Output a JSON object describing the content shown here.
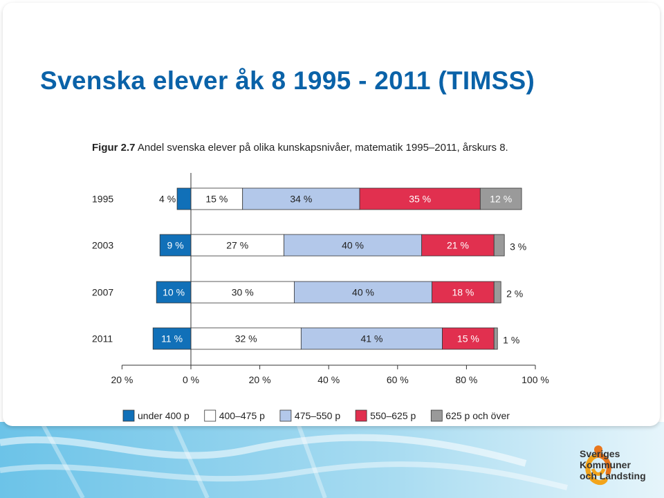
{
  "slide": {
    "title": "Svenska elever åk 8 1995 - 2011 (TIMSS)"
  },
  "figure": {
    "label": "Figur 2.7",
    "caption": "Andel svenska elever på olika kunskapsnivåer, matematik 1995–2011, årskurs 8."
  },
  "logo": {
    "lines": [
      "Sveriges",
      "Kommuner",
      "och Landsting"
    ]
  },
  "colors": {
    "title": "#0a62a8",
    "under400": "#1170b8",
    "l400_475": "#ffffff",
    "l475_550": "#b3c8ea",
    "l550_625": "#e1304f",
    "l625": "#9a9a9a"
  },
  "chart_data": {
    "type": "bar",
    "orientation": "horizontal-stacked-diverging",
    "categories": [
      "1995",
      "2003",
      "2007",
      "2011"
    ],
    "series": [
      {
        "name": "under 400 p",
        "values": [
          4,
          9,
          10,
          11
        ],
        "labels": [
          "4 %",
          "9 %",
          "10 %",
          "11 %"
        ],
        "color": "#1170b8",
        "side": "negative"
      },
      {
        "name": "400–475 p",
        "values": [
          15,
          27,
          30,
          32
        ],
        "labels": [
          "15 %",
          "27 %",
          "30 %",
          "32 %"
        ],
        "color": "#ffffff",
        "side": "positive"
      },
      {
        "name": "475–550 p",
        "values": [
          34,
          40,
          40,
          41
        ],
        "labels": [
          "34 %",
          "40 %",
          "40 %",
          "41 %"
        ],
        "color": "#b3c8ea",
        "side": "positive"
      },
      {
        "name": "550–625 p",
        "values": [
          35,
          21,
          18,
          15
        ],
        "labels": [
          "35 %",
          "21 %",
          "18 %",
          "15 %"
        ],
        "color": "#e1304f",
        "side": "positive"
      },
      {
        "name": "625 p och över",
        "values": [
          12,
          3,
          2,
          1
        ],
        "labels": [
          "12 %",
          "3 %",
          "2 %",
          "1 %"
        ],
        "color": "#9a9a9a",
        "side": "positive"
      }
    ],
    "x_ticks": [
      "20 %",
      "0 %",
      "20 %",
      "40 %",
      "60 %",
      "80 %",
      "100 %"
    ],
    "x_tick_values": [
      -20,
      0,
      20,
      40,
      60,
      80,
      100
    ],
    "xlim": [
      -20,
      100
    ],
    "legend_position": "bottom"
  }
}
